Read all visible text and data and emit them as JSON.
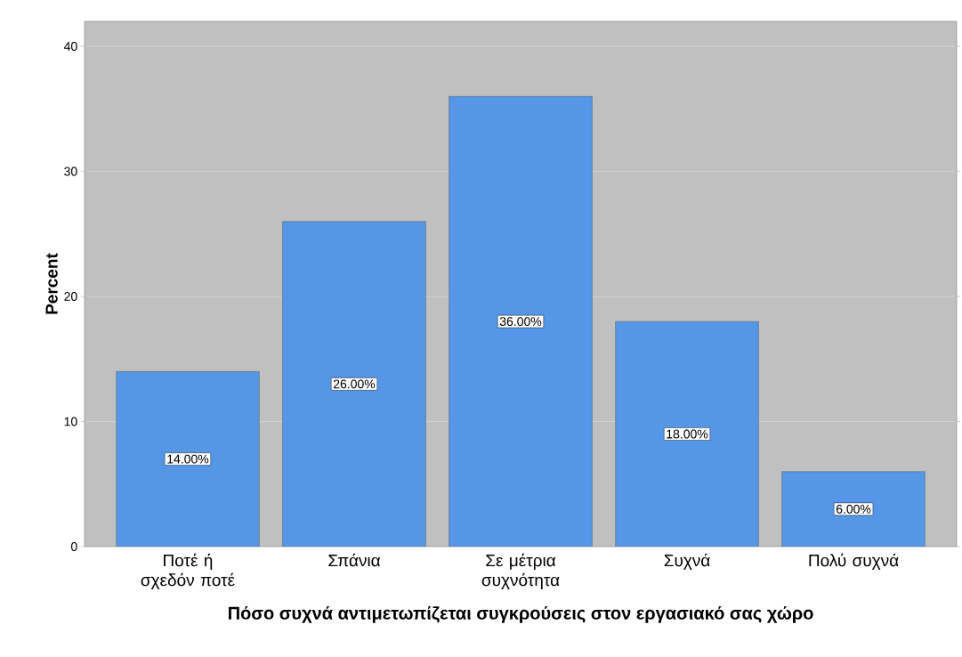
{
  "chart_data": {
    "type": "bar",
    "xlabel": "Πόσο συχνά αντιμετωπίζεται συγκρούσεις στον εργασιακό σας χώρο",
    "ylabel": "Percent",
    "categories": [
      "Ποτέ ή σχεδόν ποτέ",
      "Σπάνια",
      "Σε μέτρια συχνότητα",
      "Συχνά",
      "Πολύ συχνά"
    ],
    "values": [
      14,
      26,
      36,
      18,
      6
    ],
    "value_labels": [
      "14.00%",
      "26.00%",
      "36.00%",
      "18.00%",
      "6.00%"
    ],
    "color": "#5596e6",
    "ylim": [
      0,
      42
    ],
    "yticks": [
      0,
      10,
      20,
      30,
      40
    ],
    "grid": "y"
  }
}
